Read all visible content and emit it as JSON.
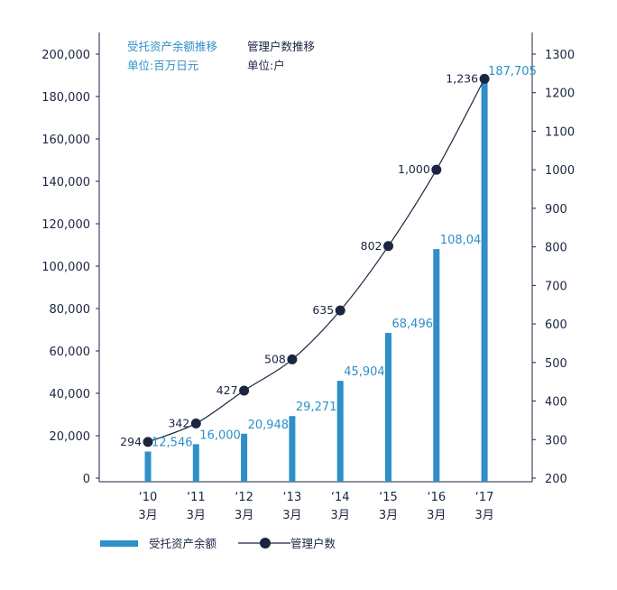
{
  "chart_data": {
    "type": "bar",
    "categories": [
      {
        "year": "‘10",
        "month": "3月"
      },
      {
        "year": "‘11",
        "month": "3月"
      },
      {
        "year": "‘12",
        "month": "3月"
      },
      {
        "year": "‘13",
        "month": "3月"
      },
      {
        "year": "‘14",
        "month": "3月"
      },
      {
        "year": "‘15",
        "month": "3月"
      },
      {
        "year": "‘16",
        "month": "3月"
      },
      {
        "year": "‘17",
        "month": "3月"
      }
    ],
    "series": [
      {
        "name": "受托资产余额",
        "type": "bar",
        "axis": "left",
        "values": [
          12546,
          16000,
          20948,
          29271,
          45904,
          68496,
          108045,
          187705
        ],
        "labels": [
          "12,546",
          "16,000",
          "20,948",
          "29,271",
          "45,904",
          "68,496",
          "108,045",
          "187,705"
        ]
      },
      {
        "name": "管理户数",
        "type": "line",
        "axis": "right",
        "values": [
          294,
          342,
          427,
          508,
          635,
          802,
          1000,
          1236
        ],
        "labels": [
          "294",
          "342",
          "427",
          "508",
          "635",
          "802",
          "1,000",
          "1,236"
        ]
      }
    ],
    "left_axis": {
      "ylim": [
        0,
        200000
      ],
      "ticks": [
        0,
        20000,
        40000,
        60000,
        80000,
        100000,
        120000,
        140000,
        160000,
        180000,
        200000
      ],
      "tick_labels": [
        "0",
        "20,000",
        "40,000",
        "60,000",
        "80,000",
        "100,000",
        "120,000",
        "140,000",
        "160,000",
        "180,000",
        "200,000"
      ]
    },
    "right_axis": {
      "ylim": [
        200,
        1300
      ],
      "ticks": [
        200,
        300,
        400,
        500,
        600,
        700,
        800,
        900,
        1000,
        1100,
        1200,
        1300
      ],
      "tick_labels": [
        "200",
        "300",
        "400",
        "500",
        "600",
        "700",
        "800",
        "900",
        "1000",
        "1100",
        "1200",
        "1300"
      ]
    },
    "annotations": {
      "bar_title": "受托资产余额推移",
      "bar_unit": "单位:百万日元",
      "line_title": "管理户数推移",
      "line_unit": "单位:户"
    },
    "grid": false,
    "legend_position": "bottom"
  },
  "colors": {
    "bar": "#2f8fc7",
    "bar_label": "#2f8fc7",
    "line": "#1a2540",
    "marker": "#1a2540",
    "axis": "#1a2540",
    "text": "#1a2540"
  }
}
